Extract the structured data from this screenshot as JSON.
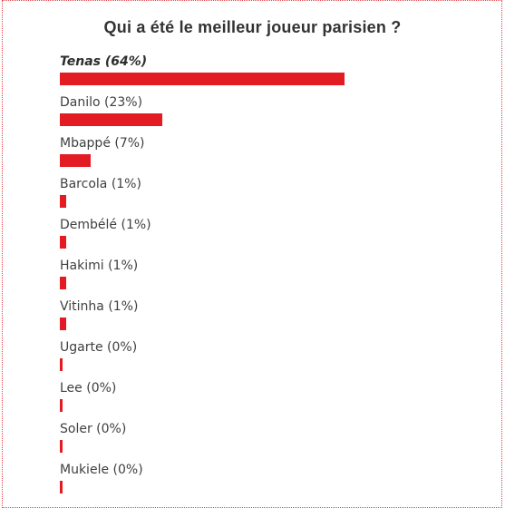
{
  "poll": {
    "title": "Qui a été le meilleur joueur parisien ?",
    "bar_color": "#e31b23",
    "options": [
      {
        "label": "Tenas (64%)",
        "percent": 64,
        "leader": true
      },
      {
        "label": "Danilo (23%)",
        "percent": 23
      },
      {
        "label": "Mbappé (7%)",
        "percent": 7
      },
      {
        "label": "Barcola (1%)",
        "percent": 1
      },
      {
        "label": "Dembélé (1%)",
        "percent": 1
      },
      {
        "label": "Hakimi (1%)",
        "percent": 1
      },
      {
        "label": "Vitinha (1%)",
        "percent": 1
      },
      {
        "label": "Ugarte (0%)",
        "percent": 0
      },
      {
        "label": "Lee (0%)",
        "percent": 0
      },
      {
        "label": "Soler (0%)",
        "percent": 0
      },
      {
        "label": "Mukiele (0%)",
        "percent": 0
      }
    ]
  }
}
